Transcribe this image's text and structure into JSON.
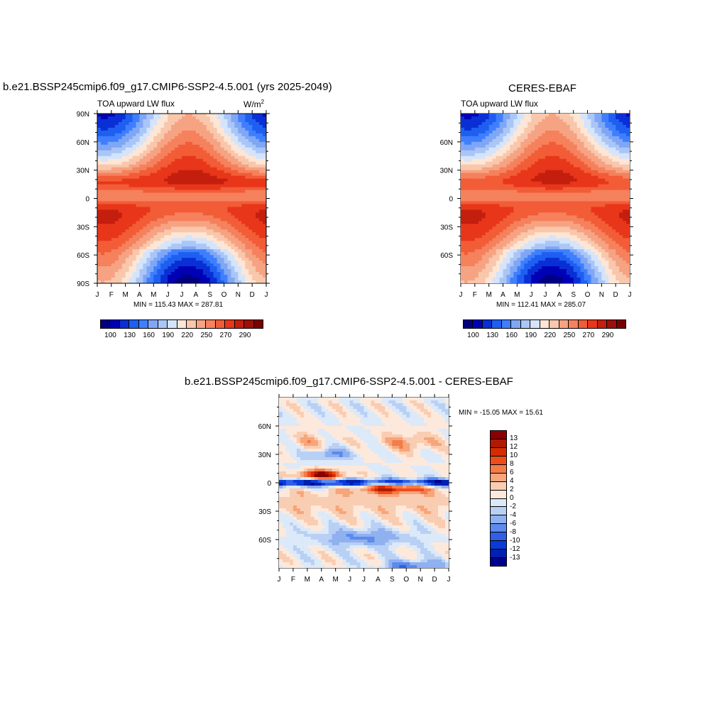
{
  "chart_data": [
    {
      "type": "heatmap",
      "title": "b.e21.BSSP245cmip6.f09_g17.CMIP6-SSP2-4.5.001 (yrs 2025-2049)",
      "subtitle": "TOA upward LW flux",
      "units_base": "W/m",
      "units_exp": "2",
      "x_ticks": [
        "J",
        "F",
        "M",
        "A",
        "M",
        "J",
        "J",
        "A",
        "S",
        "O",
        "N",
        "D",
        "J"
      ],
      "y_ticks": [
        "90N",
        "60N",
        "30N",
        "0",
        "30S",
        "60S",
        "90S"
      ],
      "stats": "MIN = 115.43 MAX = 287.81",
      "colorbar_labels": [
        "100",
        "130",
        "160",
        "190",
        "220",
        "250",
        "270",
        "290"
      ],
      "value_range": [
        115.43,
        287.81
      ]
    },
    {
      "type": "heatmap",
      "title": "CERES-EBAF",
      "subtitle": "TOA upward LW flux",
      "x_ticks": [
        "J",
        "F",
        "M",
        "A",
        "M",
        "J",
        "J",
        "A",
        "S",
        "O",
        "N",
        "D",
        "J"
      ],
      "y_ticks": [
        "60N",
        "30N",
        "0",
        "30S",
        "60S"
      ],
      "stats": "MIN = 112.41 MAX = 285.07",
      "colorbar_labels": [
        "100",
        "130",
        "160",
        "190",
        "220",
        "250",
        "270",
        "290"
      ],
      "value_range": [
        112.41,
        285.07
      ]
    },
    {
      "type": "heatmap",
      "title": "b.e21.BSSP245cmip6.f09_g17.CMIP6-SSP2-4.5.001 - CERES-EBAF",
      "x_ticks": [
        "J",
        "F",
        "M",
        "A",
        "M",
        "J",
        "J",
        "A",
        "S",
        "O",
        "N",
        "D",
        "J"
      ],
      "y_ticks": [
        "60N",
        "30N",
        "0",
        "30S",
        "60S"
      ],
      "stats": "MIN = -15.05 MAX =  15.61",
      "colorbar_labels": [
        "13",
        "12",
        "10",
        "8",
        "6",
        "4",
        "2",
        "0",
        "-2",
        "-4",
        "-6",
        "-8",
        "-10",
        "-12",
        "-13"
      ],
      "value_range": [
        -15.05,
        15.61
      ]
    }
  ],
  "colors": {
    "flux_scale": [
      "#000080",
      "#0000b4",
      "#0a2fd6",
      "#1e5ff0",
      "#3f7fff",
      "#7fa7f5",
      "#aac6f7",
      "#d4e4fb",
      "#fde6d6",
      "#f9c7ab",
      "#f6a383",
      "#f5815d",
      "#f25c36",
      "#e8361a",
      "#c41e0f",
      "#9e0f0a",
      "#7a0000"
    ],
    "diff_scale": [
      "#8b0000",
      "#b01a00",
      "#d42c00",
      "#ee4d1a",
      "#f47b4a",
      "#f7a57a",
      "#f9cdb2",
      "#fde9dc",
      "#dce9f9",
      "#b9d0f5",
      "#8fb1f0",
      "#5c8aed",
      "#2f5fe7",
      "#0a3bd8",
      "#0020b0",
      "#000090"
    ]
  }
}
